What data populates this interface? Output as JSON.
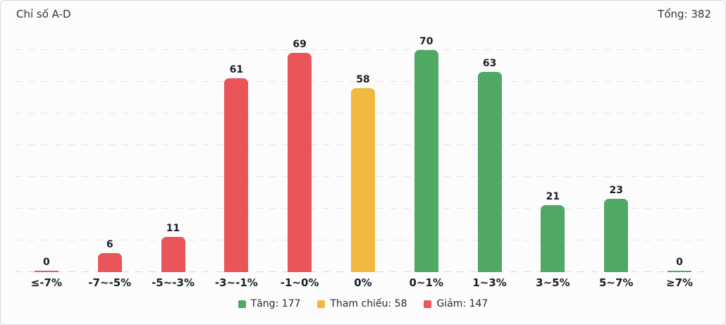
{
  "header": {
    "title": "Chỉ số A-D",
    "total": "Tổng: 382"
  },
  "colors": {
    "up": "#4FA863",
    "reference": "#F1B93D",
    "down": "#EA555A",
    "grid": "#E2E2EC",
    "value_label": "#1D1D28",
    "card_border": "#D9D9E3",
    "background": "#FCFCFD"
  },
  "chart_data": {
    "type": "bar",
    "title": "Chỉ số A-D",
    "total": 382,
    "categories": [
      "≤-7%",
      "-7~-5%",
      "-5~-3%",
      "-3~-1%",
      "-1~0%",
      "0%",
      "0~1%",
      "1~3%",
      "3~5%",
      "5~7%",
      "≥7%"
    ],
    "values": [
      0,
      6,
      11,
      61,
      69,
      58,
      70,
      63,
      21,
      23,
      0
    ],
    "bar_series": [
      "down",
      "down",
      "down",
      "down",
      "down",
      "reference",
      "up",
      "up",
      "up",
      "up",
      "up"
    ],
    "xlabel": "",
    "ylabel": "",
    "ylim": [
      0,
      70
    ],
    "grid_step": 10,
    "grid": "horizontal-dashed",
    "legend_position": "bottom",
    "legend": [
      {
        "label": "Tăng: 177",
        "series": "up"
      },
      {
        "label": "Tham chiếu: 58",
        "series": "reference"
      },
      {
        "label": "Giảm: 147",
        "series": "down"
      }
    ]
  }
}
